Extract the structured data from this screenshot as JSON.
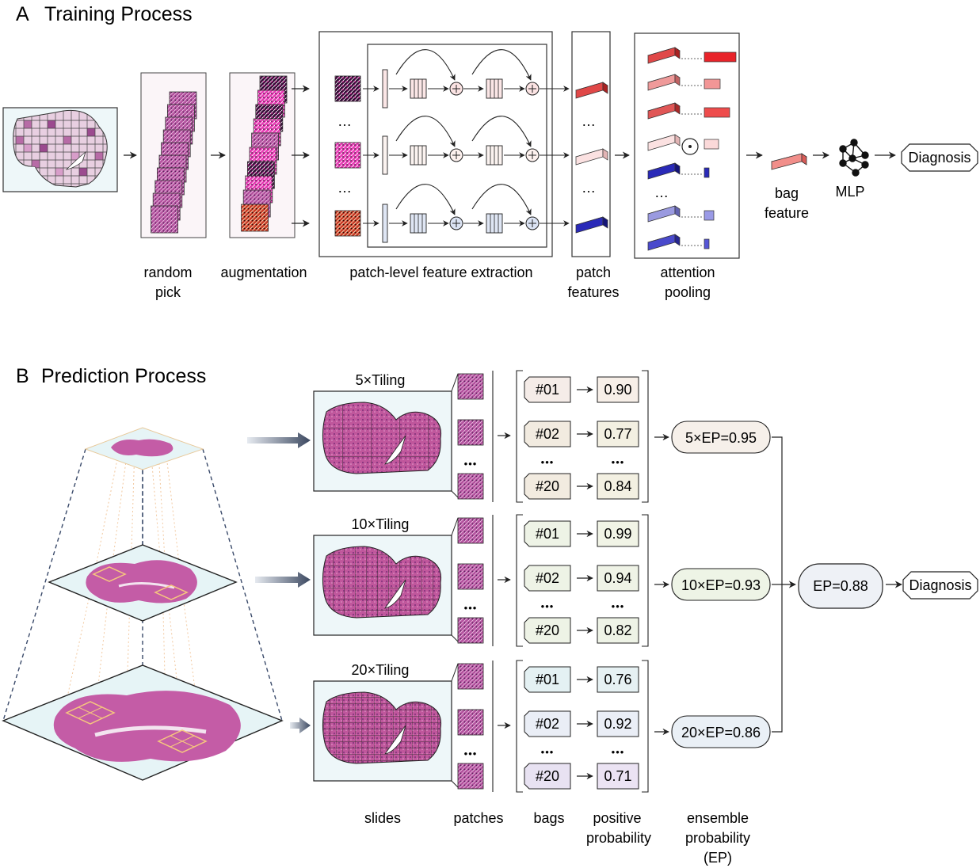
{
  "panel_a": {
    "letter": "A",
    "title": "Training Process",
    "ellipsis": "…",
    "labels": {
      "random_pick": [
        "random",
        "pick"
      ],
      "augmentation": "augmentation",
      "feature_extraction": "patch-level feature extraction",
      "patch_features": [
        "patch",
        "features"
      ],
      "attention_pooling": [
        "attention",
        "pooling"
      ],
      "bag_feature": [
        "bag",
        "feature"
      ],
      "mlp": "MLP",
      "diagnosis": "Diagnosis"
    }
  },
  "panel_b": {
    "letter": "B",
    "title": "Prediction Process",
    "dots": "•••",
    "tilings": [
      {
        "label": "5×Tiling",
        "bags": [
          "#01",
          "#02",
          "#20"
        ],
        "probs": [
          "0.90",
          "0.77",
          "0.84"
        ],
        "ep": "5×EP=0.95"
      },
      {
        "label": "10×Tiling",
        "bags": [
          "#01",
          "#02",
          "#20"
        ],
        "probs": [
          "0.99",
          "0.94",
          "0.82"
        ],
        "ep": "10×EP=0.93"
      },
      {
        "label": "20×Tiling",
        "bags": [
          "#01",
          "#02",
          "#20"
        ],
        "probs": [
          "0.76",
          "0.92",
          "0.71"
        ],
        "ep": "20×EP=0.86"
      }
    ],
    "final_ep": "EP=0.88",
    "diagnosis": "Diagnosis",
    "column_labels": {
      "slides": "slides",
      "patches": "patches",
      "bags": "bags",
      "positive_probability": [
        "positive",
        "probability"
      ],
      "ensemble_probability": [
        "ensemble",
        "probability",
        "(EP)"
      ]
    }
  },
  "colors": {
    "red_tint": "#e8898b",
    "red_dark": "#c0272d",
    "blue_dark": "#2b2bb0",
    "stain_pink": "#b2509e",
    "tile_mauve": "#9b4a8f"
  }
}
